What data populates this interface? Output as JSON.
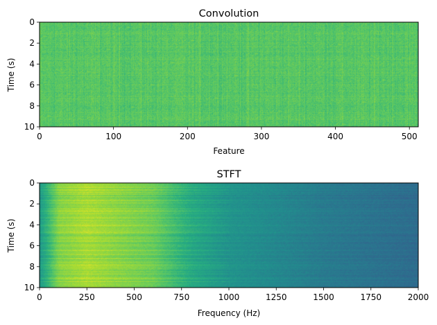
{
  "chart_data": [
    {
      "type": "heatmap",
      "title": "Convolution",
      "xlabel": "Feature",
      "ylabel": "Time (s)",
      "xlim": [
        0,
        512
      ],
      "ylim": [
        0,
        10
      ],
      "y_inverted": true,
      "xticks": [
        0,
        100,
        200,
        300,
        400,
        500
      ],
      "yticks": [
        0,
        2,
        4,
        6,
        8,
        10
      ],
      "xtick_labels": [
        "0",
        "100",
        "200",
        "300",
        "400",
        "500"
      ],
      "ytick_labels": [
        "0",
        "2",
        "4",
        "6",
        "8",
        "10"
      ],
      "colormap": "viridis",
      "pattern": "near-uniform bright green/yellow-green noise across all features and time, faint vertical streaks",
      "value_level": 0.74
    },
    {
      "type": "heatmap",
      "title": "STFT",
      "xlabel": "Frequency (Hz)",
      "ylabel": "Time (s)",
      "xlim": [
        0,
        2000
      ],
      "ylim": [
        0,
        10
      ],
      "y_inverted": true,
      "xticks": [
        0,
        250,
        500,
        750,
        1000,
        1250,
        1500,
        1750,
        2000
      ],
      "yticks": [
        0,
        2,
        4,
        6,
        8,
        10
      ],
      "xtick_labels": [
        "0",
        "250",
        "500",
        "750",
        "1000",
        "1250",
        "1500",
        "1750",
        "2000"
      ],
      "ytick_labels": [
        "0",
        "2",
        "4",
        "6",
        "8",
        "10"
      ],
      "colormap": "viridis",
      "pattern": "high energy (yellow) roughly 100-600 Hz, decaying to teal/blue-green above 1000 Hz, horizontal streaks over time",
      "energy_profile_hz": [
        0,
        100,
        250,
        600,
        800,
        1000,
        1500,
        2000
      ],
      "energy_profile_level": [
        0.55,
        0.82,
        0.88,
        0.78,
        0.62,
        0.52,
        0.42,
        0.36
      ]
    }
  ]
}
